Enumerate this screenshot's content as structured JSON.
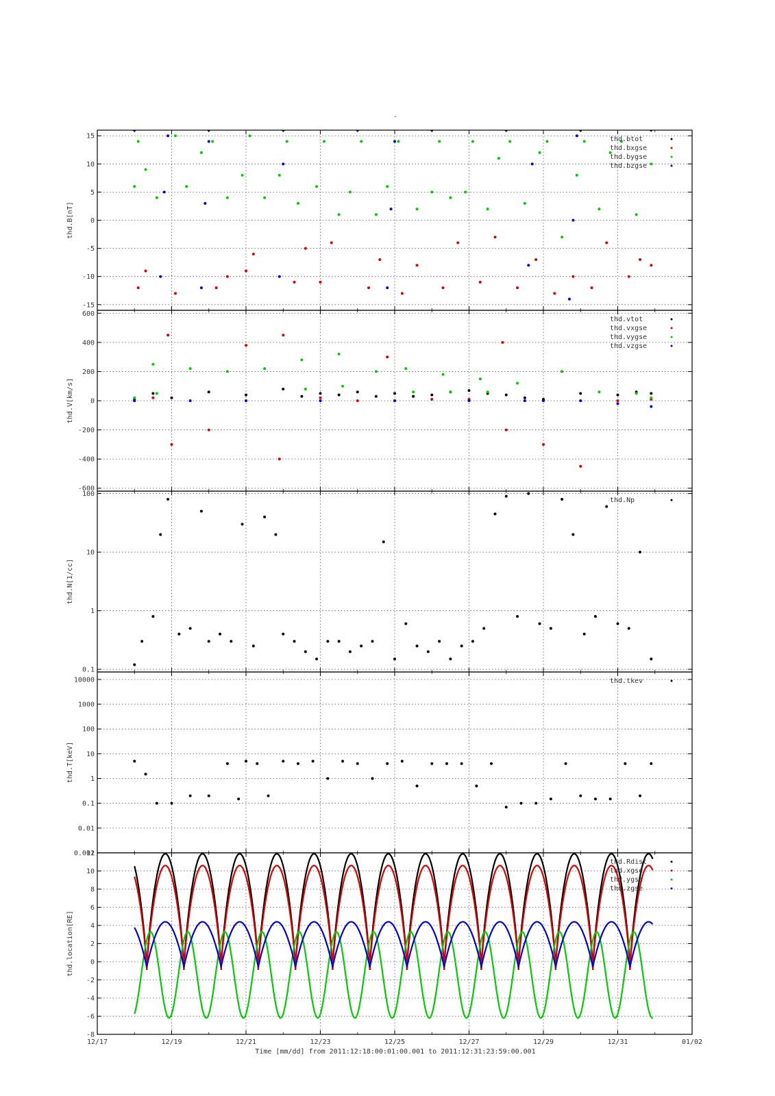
{
  "figure": {
    "top_title": "-",
    "time_caption": "Time [mm/dd]  from 2011:12:18:00:01:00.001  to  2011:12:31:23:59:00.001",
    "x_range_days": [
      17,
      33
    ],
    "x_tick_labels": [
      "12/17",
      "12/19",
      "12/21",
      "12/23",
      "12/25",
      "12/27",
      "12/29",
      "12/31",
      "01/02"
    ],
    "x_tick_values": [
      17,
      19,
      21,
      23,
      25,
      27,
      29,
      31,
      33
    ]
  },
  "colors": {
    "black": "#000000",
    "red": "#dd0000",
    "green": "#00cc00",
    "blue": "#0000dd"
  },
  "chart_data": [
    {
      "type": "scatter",
      "panel": "B",
      "ylabel": "thd.B[nT]",
      "ylim": [
        -16,
        16
      ],
      "yticks": [
        -15,
        -10,
        -5,
        0,
        5,
        10,
        15
      ],
      "ytick_labels": [
        "-15",
        "-10",
        "-5",
        "0",
        "5",
        "10",
        "15"
      ],
      "grid": true,
      "legend_position": "top-right",
      "series": [
        {
          "name": "thd.btot",
          "color": "black",
          "x": [
            18.0,
            20.0,
            22.0,
            24.0,
            26.0,
            28.0,
            30.0,
            31.9
          ],
          "y": [
            16,
            16,
            16,
            16,
            16,
            16,
            16,
            16
          ]
        },
        {
          "name": "thd.bxgse",
          "color": "red",
          "x": [
            18.1,
            18.3,
            19.1,
            20.2,
            20.5,
            21.0,
            21.2,
            22.3,
            22.6,
            23.0,
            23.3,
            24.3,
            24.6,
            25.2,
            25.6,
            26.3,
            26.7,
            27.3,
            27.7,
            28.3,
            28.8,
            29.3,
            29.8,
            30.3,
            30.7,
            31.3,
            31.6,
            31.9
          ],
          "y": [
            -12,
            -9,
            -13,
            -12,
            -10,
            -9,
            -6,
            -11,
            -5,
            -11,
            -4,
            -12,
            -7,
            -13,
            -8,
            -12,
            -4,
            -11,
            -3,
            -12,
            -7,
            -13,
            -10,
            -12,
            -4,
            -10,
            -7,
            -8
          ]
        },
        {
          "name": "thd.bygse",
          "color": "green",
          "x": [
            18.0,
            18.1,
            18.3,
            18.6,
            19.1,
            19.4,
            19.8,
            20.1,
            20.5,
            20.9,
            21.1,
            21.5,
            21.9,
            22.1,
            22.4,
            22.9,
            23.1,
            23.5,
            23.8,
            24.1,
            24.5,
            24.8,
            25.1,
            25.6,
            26.0,
            26.2,
            26.5,
            26.9,
            27.1,
            27.5,
            27.8,
            28.1,
            28.5,
            28.9,
            29.1,
            29.5,
            29.9,
            30.1,
            30.5,
            30.8,
            31.1,
            31.5,
            31.9
          ],
          "y": [
            6,
            14,
            9,
            4,
            15,
            6,
            12,
            14,
            4,
            8,
            15,
            4,
            8,
            14,
            3,
            6,
            14,
            1,
            5,
            14,
            1,
            6,
            14,
            2,
            5,
            14,
            4,
            5,
            14,
            2,
            11,
            14,
            3,
            12,
            14,
            -3,
            8,
            14,
            2,
            12,
            14,
            1,
            10
          ]
        },
        {
          "name": "thd.bzgse",
          "color": "blue",
          "x": [
            18.0,
            18.7,
            18.8,
            18.9,
            19.8,
            19.9,
            20.0,
            21.9,
            22.0,
            24.8,
            24.9,
            25.0,
            28.6,
            28.7,
            29.7,
            29.8,
            29.9
          ],
          "y": [
            16,
            -10,
            5,
            15,
            -12,
            3,
            14,
            -10,
            10,
            -12,
            2,
            14,
            -8,
            10,
            -14,
            0,
            15
          ]
        }
      ]
    },
    {
      "type": "scatter",
      "panel": "V",
      "ylabel": "thd.V[km/s]",
      "ylim": [
        -620,
        620
      ],
      "yticks": [
        -600,
        -400,
        -200,
        0,
        200,
        400,
        600
      ],
      "ytick_labels": [
        "-600",
        "-400",
        "-200",
        "0",
        "200",
        "400",
        "600"
      ],
      "grid": true,
      "legend_position": "top-right",
      "series": [
        {
          "name": "thd.vtot",
          "color": "black",
          "x": [
            18.0,
            18.5,
            19.0,
            20.0,
            21.0,
            22.0,
            22.5,
            23.0,
            23.5,
            24.0,
            24.5,
            25.0,
            25.5,
            26.0,
            26.5,
            27.0,
            27.5,
            28.0,
            28.5,
            29.0,
            30.0,
            31.0,
            31.5,
            31.9
          ],
          "y": [
            10,
            50,
            20,
            60,
            40,
            80,
            30,
            50,
            40,
            60,
            30,
            50,
            30,
            40,
            60,
            70,
            50,
            40,
            20,
            10,
            50,
            40,
            60,
            50
          ]
        },
        {
          "name": "thd.vxgse",
          "color": "red",
          "x": [
            18.0,
            18.5,
            18.9,
            19.0,
            20.0,
            21.0,
            21.9,
            22.0,
            23.0,
            24.0,
            24.8,
            25.0,
            26.0,
            27.0,
            27.9,
            28.0,
            29.0,
            29.5,
            30.0,
            31.0,
            31.9
          ],
          "y": [
            0,
            20,
            450,
            -300,
            -200,
            380,
            -400,
            450,
            20,
            0,
            300,
            0,
            10,
            10,
            400,
            -200,
            -300,
            200,
            -450,
            0,
            10
          ]
        },
        {
          "name": "thd.vygse",
          "color": "green",
          "x": [
            18.0,
            18.5,
            18.6,
            19.5,
            20.5,
            21.5,
            22.5,
            22.6,
            23.5,
            23.6,
            24.5,
            25.3,
            25.5,
            26.3,
            26.5,
            27.3,
            27.5,
            28.3,
            29.5,
            30.5,
            31.5,
            31.9
          ],
          "y": [
            20,
            250,
            50,
            220,
            200,
            220,
            280,
            80,
            320,
            100,
            200,
            220,
            60,
            180,
            60,
            150,
            60,
            120,
            200,
            60,
            50,
            20
          ]
        },
        {
          "name": "thd.vzgse",
          "color": "blue",
          "x": [
            18.0,
            19.5,
            21.0,
            23.0,
            25.0,
            27.0,
            28.5,
            29.0,
            30.0,
            31.0,
            31.9
          ],
          "y": [
            0,
            0,
            0,
            0,
            0,
            0,
            0,
            0,
            0,
            -20,
            -40
          ]
        }
      ]
    },
    {
      "type": "scatter",
      "panel": "N",
      "ylabel": "thd.N[1/cc]",
      "y_scale": "log",
      "ylim": [
        0.09,
        110
      ],
      "yticks": [
        0.1,
        1,
        10,
        100
      ],
      "ytick_labels": [
        "0.1",
        "1",
        "10",
        "100"
      ],
      "grid": true,
      "legend_position": "top-right",
      "series": [
        {
          "name": "thd.Np",
          "color": "black",
          "x": [
            18.0,
            18.2,
            18.5,
            18.7,
            18.9,
            19.2,
            19.5,
            19.8,
            20.0,
            20.3,
            20.6,
            20.9,
            21.2,
            21.5,
            21.8,
            22.0,
            22.3,
            22.6,
            22.9,
            23.2,
            23.5,
            23.8,
            24.1,
            24.4,
            24.7,
            25.0,
            25.3,
            25.6,
            25.9,
            26.2,
            26.5,
            26.8,
            27.1,
            27.4,
            27.7,
            28.0,
            28.3,
            28.6,
            28.9,
            29.2,
            29.5,
            29.8,
            30.1,
            30.4,
            30.7,
            31.0,
            31.3,
            31.6,
            31.9
          ],
          "y": [
            0.12,
            0.3,
            0.8,
            20,
            80,
            0.4,
            0.5,
            50,
            0.3,
            0.4,
            0.3,
            30,
            0.25,
            40,
            20,
            0.4,
            0.3,
            0.2,
            0.15,
            0.3,
            0.3,
            0.2,
            0.25,
            0.3,
            15,
            0.15,
            0.6,
            0.25,
            0.2,
            0.3,
            0.15,
            0.25,
            0.3,
            0.5,
            45,
            90,
            0.8,
            100,
            0.6,
            0.5,
            80,
            20,
            0.4,
            0.8,
            60,
            0.6,
            0.5,
            10,
            0.15
          ]
        }
      ]
    },
    {
      "type": "scatter",
      "panel": "T",
      "ylabel": "thd.T[keV]",
      "y_scale": "log",
      "ylim": [
        0.001,
        20000
      ],
      "yticks": [
        0.001,
        0.01,
        0.1,
        1,
        10,
        100,
        1000,
        10000
      ],
      "ytick_labels": [
        "0.001",
        "0.01",
        "0.1",
        "1",
        "10",
        "100",
        "1000",
        "10000"
      ],
      "grid": true,
      "legend_position": "top-right",
      "series": [
        {
          "name": "thd.tkev",
          "color": "black",
          "x": [
            18.0,
            18.3,
            18.6,
            19.0,
            19.5,
            20.0,
            20.5,
            20.8,
            21.0,
            21.3,
            21.6,
            22.0,
            22.4,
            22.8,
            23.2,
            23.6,
            24.0,
            24.4,
            24.8,
            25.2,
            25.6,
            26.0,
            26.4,
            26.8,
            27.2,
            27.6,
            28.0,
            28.4,
            28.8,
            29.2,
            29.6,
            30.0,
            30.4,
            30.8,
            31.2,
            31.6,
            31.9
          ],
          "y": [
            5,
            1.5,
            0.1,
            0.1,
            0.2,
            0.2,
            4,
            0.15,
            5,
            4,
            0.2,
            5,
            4,
            5,
            1,
            5,
            4,
            1,
            4,
            5,
            0.5,
            4,
            4,
            4,
            0.5,
            4,
            0.07,
            0.1,
            0.1,
            0.15,
            4,
            0.2,
            0.15,
            0.15,
            4,
            0.2,
            4
          ]
        }
      ]
    },
    {
      "type": "line",
      "panel": "location",
      "ylabel": "thd.location[RE]",
      "ylim": [
        -8,
        12
      ],
      "yticks": [
        -8,
        -6,
        -4,
        -2,
        0,
        2,
        4,
        6,
        8,
        10,
        12
      ],
      "ytick_labels": [
        "-8",
        "-6",
        "-4",
        "-2",
        "0",
        "2",
        "4",
        "6",
        "8",
        "10",
        "12"
      ],
      "grid": true,
      "legend_position": "top-right",
      "orbit_period_days": 1.0,
      "orbit_perigee_times": [
        18.33,
        19.35,
        20.36,
        21.38,
        22.39,
        23.41,
        24.42,
        25.44,
        26.45,
        27.47,
        28.48,
        29.5,
        30.51,
        31.52
      ],
      "series": [
        {
          "name": "thd.Rdist",
          "color": "black",
          "apogee": 11.9,
          "perigee": -0.9
        },
        {
          "name": "thd.xgse",
          "color": "red",
          "apogee": 10.6,
          "perigee": -0.9
        },
        {
          "name": "thd.ygse",
          "color": "green",
          "max": 3.3,
          "min": -6.2
        },
        {
          "name": "thd.zgse",
          "color": "blue",
          "max": 4.4,
          "min": -0.6
        }
      ]
    }
  ]
}
